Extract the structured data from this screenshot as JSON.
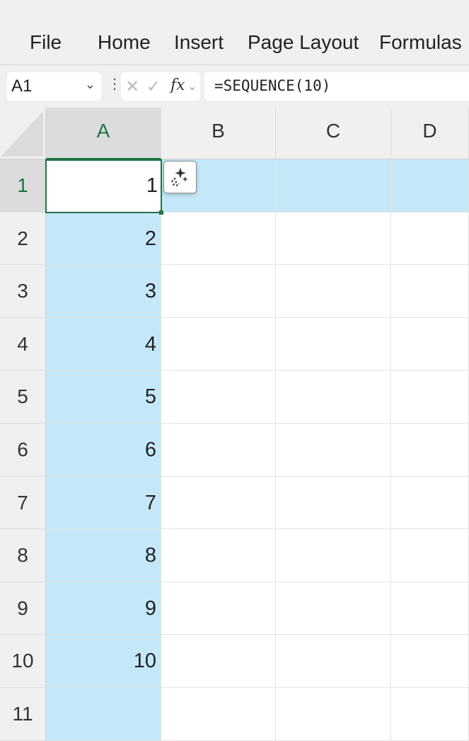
{
  "menu": [
    "File",
    "Home",
    "Insert",
    "Page Layout",
    "Formulas"
  ],
  "namebox": {
    "value": "A1"
  },
  "formula_bar": {
    "cancel": "✕",
    "enter": "✓",
    "fx": "fx",
    "formula": "=SEQUENCE(10)"
  },
  "columns": [
    "A",
    "B",
    "C",
    "D"
  ],
  "rows": [
    "1",
    "2",
    "3",
    "4",
    "5",
    "6",
    "7",
    "8",
    "9",
    "10",
    "11"
  ],
  "values": [
    "1",
    "2",
    "3",
    "4",
    "5",
    "6",
    "7",
    "8",
    "9",
    "10"
  ],
  "colors": {
    "selection": "#c4e8f8",
    "active_border": "#217346"
  }
}
